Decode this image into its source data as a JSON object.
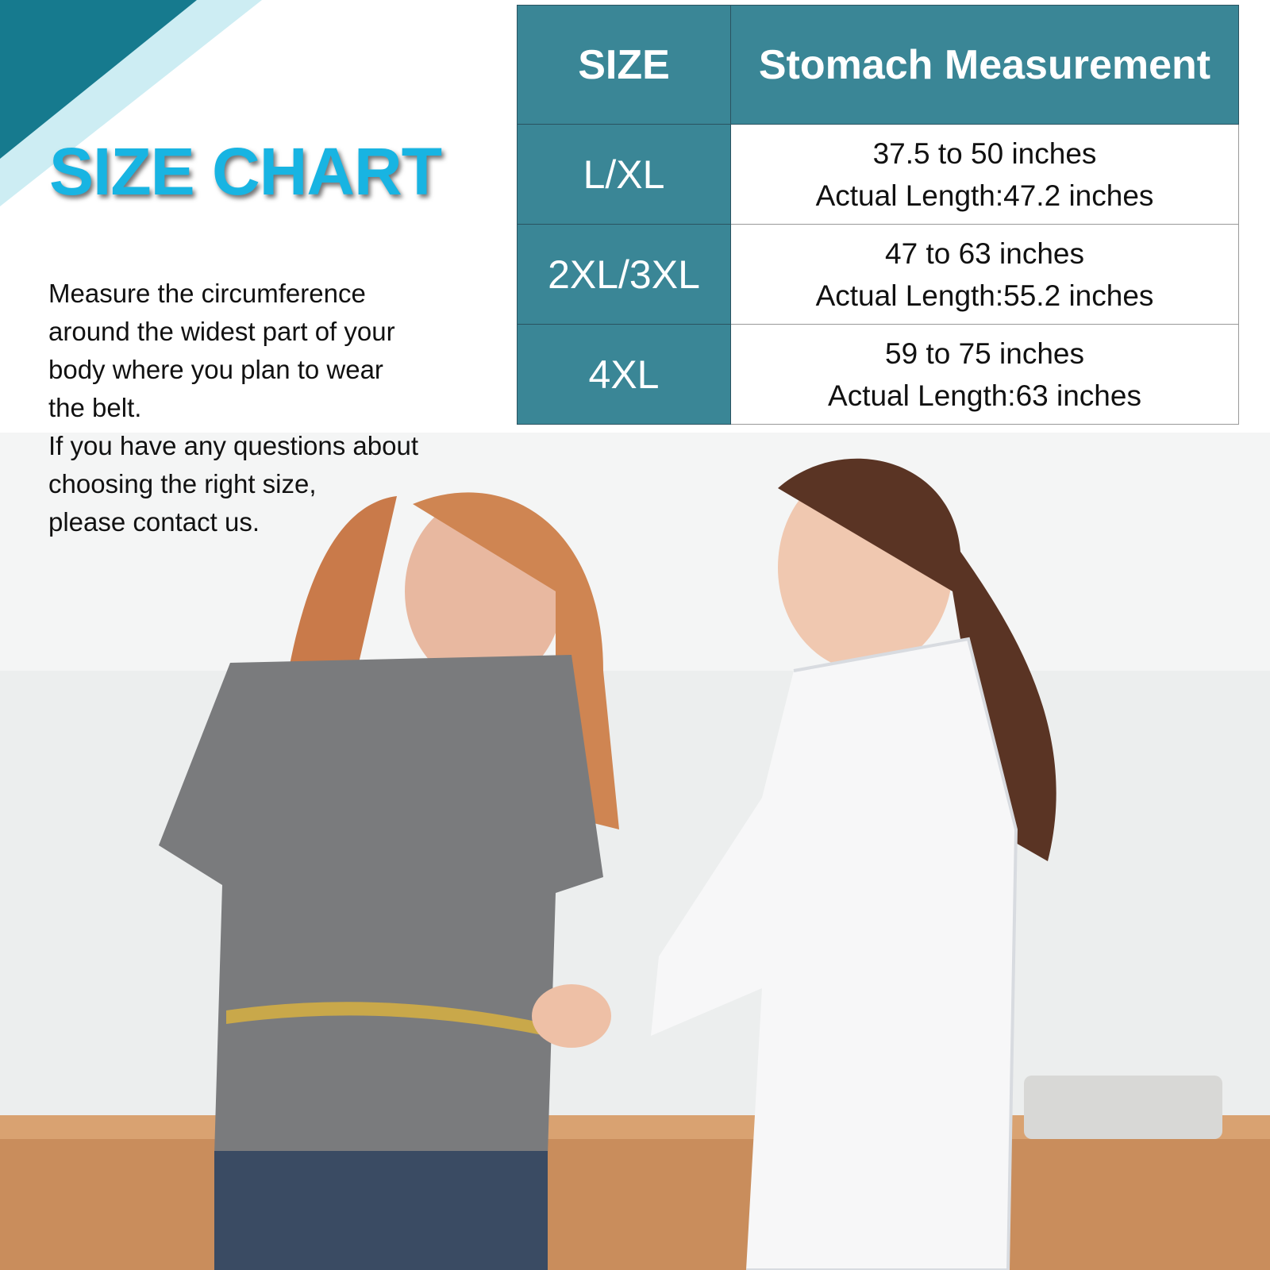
{
  "title": "SIZE CHART",
  "description_lines": [
    "Measure the circumference",
    "around the widest part of your",
    "body where you plan to wear",
    "the belt.",
    "If you have any questions about",
    "choosing the right size,",
    "please contact us."
  ],
  "table": {
    "headers": [
      "SIZE",
      "Stomach Measurement"
    ],
    "rows": [
      {
        "size": "L/XL",
        "range": "37.5 to 50 inches",
        "actual": "Actual Length:47.2 inches"
      },
      {
        "size": "2XL/3XL",
        "range": "47 to 63 inches",
        "actual": "Actual Length:55.2 inches"
      },
      {
        "size": "4XL",
        "range": "59 to 75 inches",
        "actual": "Actual Length:63 inches"
      }
    ]
  },
  "colors": {
    "table_teal": "#3a8696",
    "title_blue": "#18b4e2",
    "corner_dark": "#167a8e",
    "corner_light": "#cdedf3"
  }
}
